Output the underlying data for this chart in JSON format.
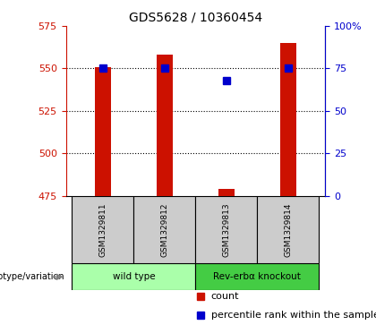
{
  "title": "GDS5628 / 10360454",
  "samples": [
    "GSM1329811",
    "GSM1329812",
    "GSM1329813",
    "GSM1329814"
  ],
  "counts": [
    551,
    558,
    479,
    565
  ],
  "percentiles": [
    75,
    75,
    68,
    75
  ],
  "ylim_left": [
    475,
    575
  ],
  "ylim_right": [
    0,
    100
  ],
  "yticks_left": [
    475,
    500,
    525,
    550,
    575
  ],
  "yticks_right": [
    0,
    25,
    50,
    75,
    100
  ],
  "bar_color": "#cc1100",
  "dot_color": "#0000cc",
  "bar_width": 0.25,
  "groups": [
    {
      "label": "wild type",
      "samples": [
        0,
        1
      ],
      "color": "#aaffaa"
    },
    {
      "label": "Rev-erbα knockout",
      "samples": [
        2,
        3
      ],
      "color": "#44cc44"
    }
  ],
  "genotype_label": "genotype/variation",
  "legend_count_label": "count",
  "legend_percentile_label": "percentile rank within the sample",
  "left_axis_color": "#cc1100",
  "right_axis_color": "#0000cc",
  "background_color": "#ffffff",
  "plot_bg_color": "#ffffff",
  "sample_box_color": "#cccccc",
  "grid_ticks": [
    500,
    525,
    550
  ],
  "dot_size": 6
}
